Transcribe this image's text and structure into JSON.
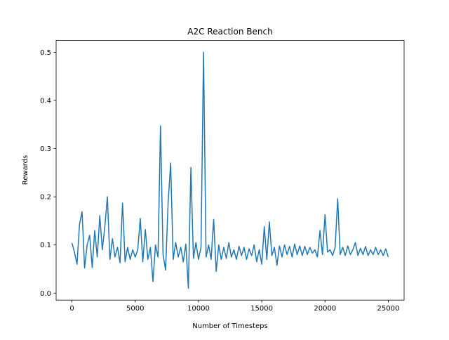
{
  "chart_data": {
    "type": "line",
    "title": "A2C Reaction Bench",
    "xlabel": "Number of Timesteps",
    "ylabel": "Rewards",
    "color": "#1f77b4",
    "x": [
      0,
      200,
      400,
      600,
      800,
      1000,
      1200,
      1400,
      1600,
      1800,
      2000,
      2200,
      2400,
      2600,
      2800,
      3000,
      3200,
      3400,
      3600,
      3800,
      4000,
      4200,
      4400,
      4600,
      4800,
      5000,
      5200,
      5400,
      5600,
      5800,
      6000,
      6200,
      6400,
      6600,
      6800,
      7000,
      7200,
      7400,
      7600,
      7800,
      8000,
      8200,
      8400,
      8600,
      8800,
      9000,
      9200,
      9400,
      9600,
      9800,
      10000,
      10200,
      10400,
      10600,
      10800,
      11000,
      11200,
      11400,
      11600,
      11800,
      12000,
      12200,
      12400,
      12600,
      12800,
      13000,
      13200,
      13400,
      13600,
      13800,
      14000,
      14200,
      14400,
      14600,
      14800,
      15000,
      15200,
      15400,
      15600,
      15800,
      16000,
      16200,
      16400,
      16600,
      16800,
      17000,
      17200,
      17400,
      17600,
      17800,
      18000,
      18200,
      18400,
      18600,
      18800,
      19000,
      19200,
      19400,
      19600,
      19800,
      20000,
      20200,
      20400,
      20600,
      20800,
      21000,
      21200,
      21400,
      21600,
      21800,
      22000,
      22200,
      22400,
      22600,
      22800,
      23000,
      23200,
      23400,
      23600,
      23800,
      24000,
      24200,
      24400,
      24600,
      24800,
      25000
    ],
    "values": [
      0.104,
      0.085,
      0.06,
      0.143,
      0.169,
      0.052,
      0.1,
      0.12,
      0.053,
      0.13,
      0.075,
      0.161,
      0.09,
      0.138,
      0.2,
      0.07,
      0.113,
      0.075,
      0.095,
      0.063,
      0.187,
      0.065,
      0.095,
      0.07,
      0.09,
      0.075,
      0.09,
      0.155,
      0.065,
      0.132,
      0.07,
      0.095,
      0.024,
      0.1,
      0.075,
      0.347,
      0.08,
      0.048,
      0.187,
      0.27,
      0.07,
      0.105,
      0.075,
      0.095,
      0.065,
      0.102,
      0.01,
      0.261,
      0.072,
      0.105,
      0.07,
      0.095,
      0.5,
      0.075,
      0.1,
      0.07,
      0.153,
      0.045,
      0.1,
      0.07,
      0.095,
      0.072,
      0.105,
      0.075,
      0.09,
      0.07,
      0.097,
      0.078,
      0.095,
      0.07,
      0.092,
      0.078,
      0.1,
      0.065,
      0.09,
      0.06,
      0.138,
      0.07,
      0.148,
      0.078,
      0.095,
      0.058,
      0.098,
      0.075,
      0.1,
      0.08,
      0.097,
      0.075,
      0.102,
      0.08,
      0.098,
      0.078,
      0.097,
      0.08,
      0.095,
      0.083,
      0.09,
      0.075,
      0.13,
      0.08,
      0.163,
      0.085,
      0.09,
      0.078,
      0.095,
      0.196,
      0.08,
      0.095,
      0.078,
      0.098,
      0.08,
      0.09,
      0.105,
      0.078,
      0.093,
      0.08,
      0.097,
      0.078,
      0.09,
      0.08,
      0.095,
      0.08,
      0.09,
      0.078,
      0.092,
      0.075
    ],
    "xlim": [
      -1250,
      26250
    ],
    "xticks": [
      0,
      5000,
      10000,
      15000,
      20000,
      25000
    ],
    "ylim": [
      -0.0145,
      0.5245
    ],
    "yticks": [
      {
        "value": 0,
        "label": "0.0"
      },
      0.1,
      0.2,
      0.3,
      0.4,
      0.5
    ]
  }
}
